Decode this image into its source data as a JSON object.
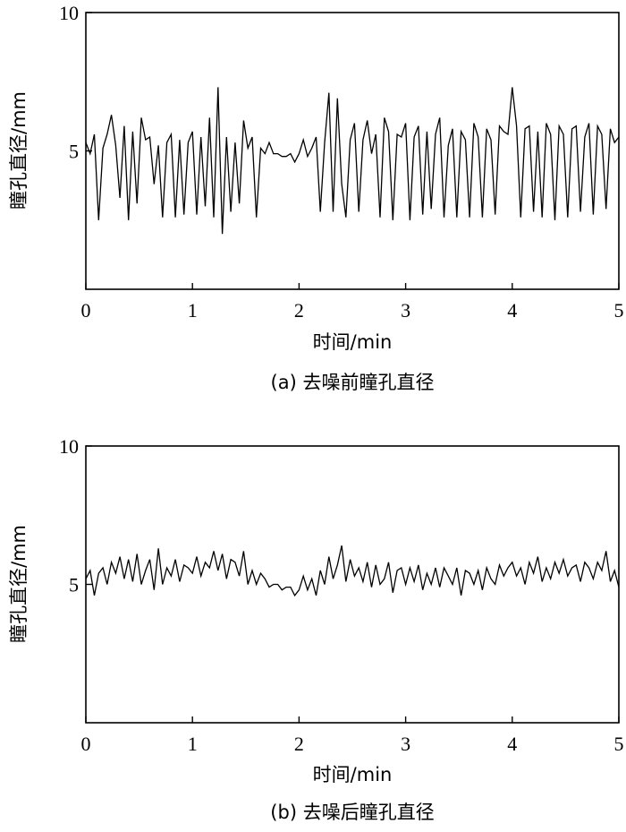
{
  "chart_data": [
    {
      "type": "line",
      "caption": "(a) 去噪前瞳孔直径",
      "xlabel": "时间/min",
      "ylabel": "瞳孔直径/mm",
      "xlim": [
        0,
        5
      ],
      "ylim": [
        0,
        10
      ],
      "xticks": [
        "0",
        "1",
        "2",
        "3",
        "4",
        "5"
      ],
      "yticks": [
        "5",
        "10"
      ],
      "grid": false,
      "series": [
        {
          "x": [
            0,
            0.04,
            0.08,
            0.12,
            0.16,
            0.2,
            0.24,
            0.28,
            0.32,
            0.36,
            0.4,
            0.44,
            0.48,
            0.52,
            0.56,
            0.6,
            0.64,
            0.68,
            0.72,
            0.76,
            0.8,
            0.84,
            0.88,
            0.92,
            0.96,
            1,
            1.04,
            1.08,
            1.12,
            1.16,
            1.2,
            1.24,
            1.28,
            1.32,
            1.36,
            1.4,
            1.44,
            1.48,
            1.52,
            1.56,
            1.6,
            1.64,
            1.68,
            1.72,
            1.76,
            1.8,
            1.84,
            1.88,
            1.92,
            1.96,
            2,
            2.04,
            2.08,
            2.12,
            2.16,
            2.2,
            2.24,
            2.28,
            2.32,
            2.36,
            2.4,
            2.44,
            2.48,
            2.52,
            2.56,
            2.6,
            2.64,
            2.68,
            2.72,
            2.76,
            2.8,
            2.84,
            2.88,
            2.92,
            2.96,
            3,
            3.04,
            3.08,
            3.12,
            3.16,
            3.2,
            3.24,
            3.28,
            3.32,
            3.36,
            3.4,
            3.44,
            3.48,
            3.52,
            3.56,
            3.6,
            3.64,
            3.68,
            3.72,
            3.76,
            3.8,
            3.84,
            3.88,
            3.92,
            3.96,
            4,
            4.04,
            4.08,
            4.12,
            4.16,
            4.2,
            4.24,
            4.28,
            4.32,
            4.36,
            4.4,
            4.44,
            4.48,
            4.52,
            4.56,
            4.6,
            4.64,
            4.68,
            4.72,
            4.76,
            4.8,
            4.84,
            4.88,
            4.92,
            4.96,
            5
          ],
          "y": [
            5.3,
            4.9,
            5.6,
            2.5,
            5.1,
            5.6,
            6.3,
            5.2,
            3.3,
            5.9,
            2.5,
            5.7,
            3.1,
            6.2,
            5.4,
            5.5,
            3.8,
            5.2,
            2.6,
            5.3,
            5.6,
            2.6,
            5.4,
            2.7,
            5.3,
            5.7,
            2.7,
            5.5,
            3.0,
            6.2,
            2.6,
            7.3,
            2.0,
            5.5,
            2.8,
            5.3,
            3.1,
            6.1,
            5.1,
            5.5,
            2.6,
            5.1,
            4.9,
            5.3,
            4.9,
            4.9,
            4.8,
            4.8,
            4.9,
            4.6,
            4.9,
            5.4,
            4.8,
            5.1,
            5.5,
            2.8,
            5.3,
            7.1,
            2.8,
            6.9,
            3.8,
            2.6,
            5.4,
            6.0,
            2.8,
            5.4,
            6.1,
            4.9,
            5.6,
            2.6,
            6.2,
            5.7,
            2.5,
            5.6,
            5.5,
            6.0,
            2.5,
            5.5,
            5.9,
            2.7,
            5.7,
            2.9,
            5.6,
            6.2,
            2.6,
            5.2,
            5.8,
            2.6,
            5.7,
            5.4,
            2.6,
            6.0,
            5.5,
            2.6,
            5.8,
            5.4,
            2.7,
            5.9,
            5.7,
            5.6,
            7.3,
            5.9,
            2.6,
            5.8,
            5.9,
            2.8,
            5.7,
            2.6,
            6.0,
            5.6,
            2.5,
            5.9,
            5.6,
            2.6,
            5.8,
            5.9,
            2.8,
            5.5,
            6.0,
            2.7,
            5.9,
            5.6,
            2.9,
            5.8,
            5.3,
            5.5
          ]
        }
      ]
    },
    {
      "type": "line",
      "caption": "(b) 去噪后瞳孔直径",
      "xlabel": "时间/min",
      "ylabel": "瞳孔直径/mm",
      "xlim": [
        0,
        5
      ],
      "ylim": [
        0,
        10
      ],
      "xticks": [
        "0",
        "1",
        "2",
        "3",
        "4",
        "5"
      ],
      "yticks": [
        "5",
        "10"
      ],
      "grid": false,
      "series": [
        {
          "x": [
            0,
            0.04,
            0.08,
            0.12,
            0.16,
            0.2,
            0.24,
            0.28,
            0.32,
            0.36,
            0.4,
            0.44,
            0.48,
            0.52,
            0.56,
            0.6,
            0.64,
            0.68,
            0.72,
            0.76,
            0.8,
            0.84,
            0.88,
            0.92,
            0.96,
            1,
            1.04,
            1.08,
            1.12,
            1.16,
            1.2,
            1.24,
            1.28,
            1.32,
            1.36,
            1.4,
            1.44,
            1.48,
            1.52,
            1.56,
            1.6,
            1.64,
            1.68,
            1.72,
            1.76,
            1.8,
            1.84,
            1.88,
            1.92,
            1.96,
            2,
            2.04,
            2.08,
            2.12,
            2.16,
            2.2,
            2.24,
            2.28,
            2.32,
            2.36,
            2.4,
            2.44,
            2.48,
            2.52,
            2.56,
            2.6,
            2.64,
            2.68,
            2.72,
            2.76,
            2.8,
            2.84,
            2.88,
            2.92,
            2.96,
            3,
            3.04,
            3.08,
            3.12,
            3.16,
            3.2,
            3.24,
            3.28,
            3.32,
            3.36,
            3.4,
            3.44,
            3.48,
            3.52,
            3.56,
            3.6,
            3.64,
            3.68,
            3.72,
            3.76,
            3.8,
            3.84,
            3.88,
            3.92,
            3.96,
            4,
            4.04,
            4.08,
            4.12,
            4.16,
            4.2,
            4.24,
            4.28,
            4.32,
            4.36,
            4.4,
            4.44,
            4.48,
            4.52,
            4.56,
            4.6,
            4.64,
            4.68,
            4.72,
            4.76,
            4.8,
            4.84,
            4.88,
            4.92,
            4.96,
            5
          ],
          "y": [
            5.2,
            5.5,
            4.6,
            5.4,
            5.6,
            5.0,
            5.8,
            5.4,
            6.0,
            5.2,
            5.9,
            5.1,
            6.1,
            5.0,
            5.5,
            5.9,
            4.8,
            6.3,
            5.0,
            5.6,
            5.3,
            5.9,
            5.1,
            5.7,
            5.6,
            5.4,
            6.0,
            5.3,
            5.8,
            5.6,
            6.2,
            5.5,
            6.1,
            5.2,
            5.9,
            5.8,
            5.3,
            6.2,
            5.0,
            5.5,
            5.0,
            5.4,
            5.2,
            4.9,
            5.0,
            5.0,
            4.8,
            4.9,
            4.9,
            4.6,
            4.8,
            5.3,
            4.8,
            5.2,
            4.6,
            5.5,
            5.0,
            6.0,
            5.2,
            5.7,
            6.4,
            5.1,
            5.9,
            5.3,
            5.6,
            5.1,
            5.8,
            4.9,
            5.7,
            5.0,
            5.2,
            5.8,
            4.7,
            5.5,
            5.6,
            5.0,
            5.6,
            5.1,
            5.7,
            4.8,
            5.4,
            5.0,
            5.6,
            4.9,
            5.6,
            5.3,
            5.0,
            5.6,
            4.6,
            5.5,
            5.4,
            5.0,
            5.5,
            4.8,
            5.6,
            5.2,
            5.0,
            5.7,
            5.3,
            5.6,
            5.8,
            5.3,
            5.6,
            5.0,
            5.8,
            5.4,
            6.0,
            5.1,
            5.6,
            5.2,
            5.8,
            5.4,
            5.9,
            5.3,
            5.6,
            5.7,
            5.1,
            5.8,
            5.6,
            5.2,
            5.8,
            5.5,
            6.2,
            5.1,
            5.5,
            4.9
          ]
        }
      ]
    }
  ]
}
